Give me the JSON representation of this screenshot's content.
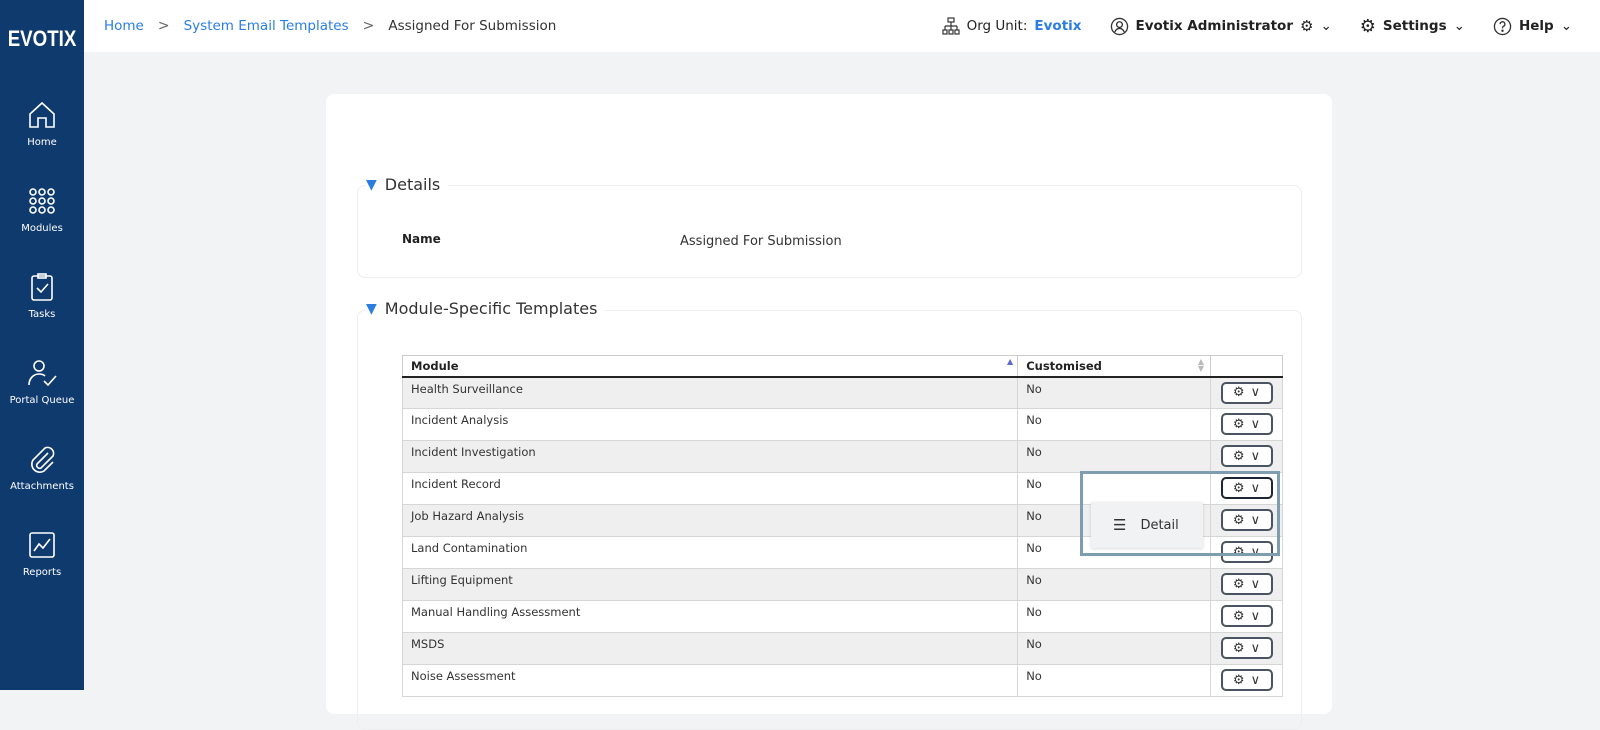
{
  "brand": "EVOTIX",
  "sidebar": {
    "items": [
      {
        "label": "Home",
        "icon": "home-icon"
      },
      {
        "label": "Modules",
        "icon": "grid-icon"
      },
      {
        "label": "Tasks",
        "icon": "clipboard-check-icon"
      },
      {
        "label": "Portal Queue",
        "icon": "user-check-icon"
      },
      {
        "label": "Attachments",
        "icon": "paperclip-icon"
      },
      {
        "label": "Reports",
        "icon": "chart-icon"
      }
    ]
  },
  "breadcrumb": {
    "items": [
      "Home",
      "System Email Templates"
    ],
    "current": "Assigned For Submission"
  },
  "header": {
    "org_label": "Org Unit:",
    "org_value": "Evotix",
    "user": "Evotix Administrator",
    "settings": "Settings",
    "help": "Help"
  },
  "details": {
    "title": "Details",
    "name_label": "Name",
    "name_value": "Assigned For Submission"
  },
  "templates": {
    "title": "Module-Specific Templates",
    "columns": [
      "Module",
      "Customised"
    ],
    "rows": [
      {
        "module": "Health Surveillance",
        "customised": "No"
      },
      {
        "module": "Incident Analysis",
        "customised": "No"
      },
      {
        "module": "Incident Investigation",
        "customised": "No"
      },
      {
        "module": "Incident Record",
        "customised": "No"
      },
      {
        "module": "Job Hazard Analysis",
        "customised": "No"
      },
      {
        "module": "Land Contamination",
        "customised": "No"
      },
      {
        "module": "Lifting Equipment",
        "customised": "No"
      },
      {
        "module": "Manual Handling Assessment",
        "customised": "No"
      },
      {
        "module": "MSDS",
        "customised": "No"
      },
      {
        "module": "Noise Assessment",
        "customised": "No"
      }
    ]
  },
  "action_menu": {
    "items": [
      "Detail"
    ]
  },
  "colors": {
    "sidebar": "#0f3a6e",
    "link": "#2a7de1"
  }
}
